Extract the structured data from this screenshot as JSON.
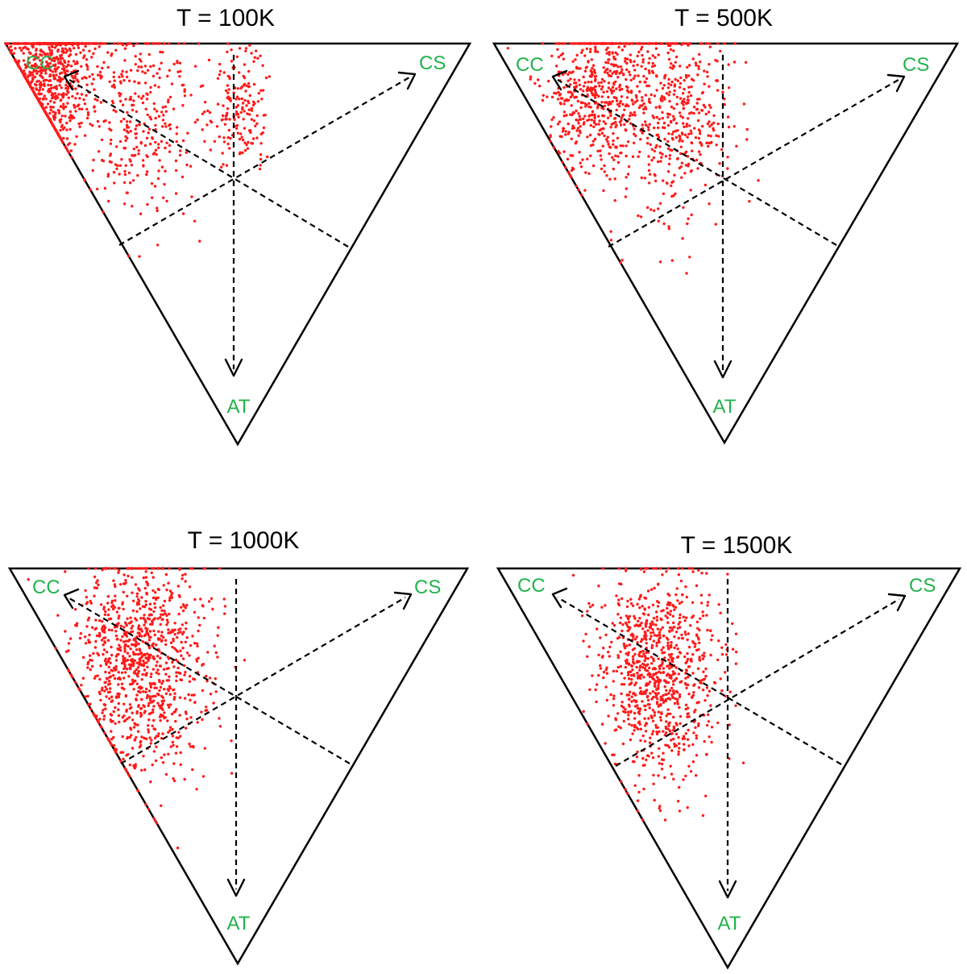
{
  "figure": {
    "panel_colors": {
      "outline": "#000000",
      "axes": "#000000",
      "points": "#ff1a1a",
      "vertex_labels": "#22b34b"
    }
  },
  "chart_data": [
    {
      "type": "scatter",
      "subtype": "ternary",
      "title": "T = 100K",
      "vertices": [
        "CC",
        "CS",
        "AT"
      ],
      "axes": "dashed arrows from centroid toward each vertex",
      "point_count": 1300,
      "cluster_components": [
        {
          "name": "",
          "weight": 0.62,
          "center": {
            "CC": 0.88,
            "CS": 0.06,
            "AT": 0.06
          },
          "spread": 0.07
        },
        {
          "name": "",
          "weight": 0.25,
          "center": {
            "CC": 0.62,
            "CS": 0.2,
            "AT": 0.18
          },
          "spread": 0.09
        },
        {
          "name": "",
          "weight": 0.13,
          "center": {
            "CC": 0.42,
            "CS": 0.42,
            "AT": 0.16
          },
          "spread": 0.05
        }
      ]
    },
    {
      "type": "scatter",
      "subtype": "ternary",
      "title": "T = 500K",
      "vertices": [
        "CC",
        "CS",
        "AT"
      ],
      "axes": "dashed arrows from centroid toward each vertex",
      "point_count": 1000,
      "cluster_components": [
        {
          "name": "",
          "weight": 0.55,
          "center": {
            "CC": 0.72,
            "CS": 0.16,
            "AT": 0.12
          },
          "spread": 0.08
        },
        {
          "name": "",
          "weight": 0.45,
          "center": {
            "CC": 0.52,
            "CS": 0.3,
            "AT": 0.18
          },
          "spread": 0.09
        }
      ]
    },
    {
      "type": "scatter",
      "subtype": "ternary",
      "title": "T = 1000K",
      "vertices": [
        "CC",
        "CS",
        "AT"
      ],
      "axes": "dashed arrows from centroid toward each vertex",
      "point_count": 1000,
      "cluster_components": [
        {
          "name": "",
          "weight": 1.0,
          "center": {
            "CC": 0.6,
            "CS": 0.17,
            "AT": 0.23
          },
          "spread": 0.1
        }
      ]
    },
    {
      "type": "scatter",
      "subtype": "ternary",
      "title": "T = 1500K",
      "vertices": [
        "CC",
        "CS",
        "AT"
      ],
      "axes": "dashed arrows from centroid toward each vertex",
      "point_count": 900,
      "cluster_components": [
        {
          "name": "",
          "weight": 1.0,
          "center": {
            "CC": 0.52,
            "CS": 0.22,
            "AT": 0.26
          },
          "spread": 0.09
        }
      ]
    }
  ]
}
